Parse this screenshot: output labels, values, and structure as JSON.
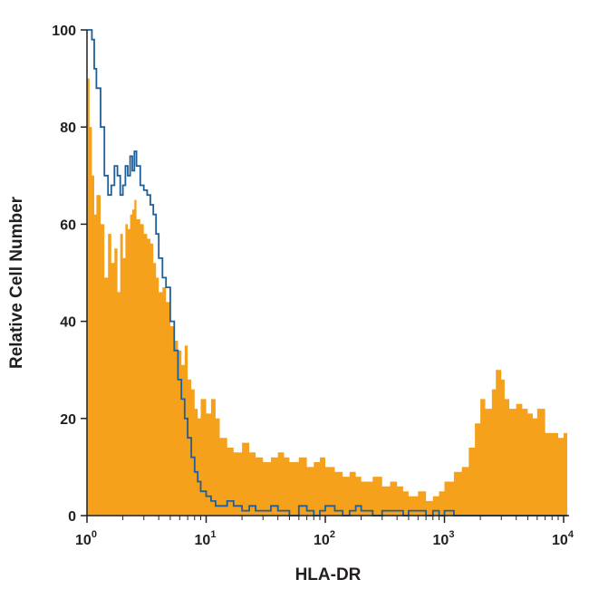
{
  "chart_data": {
    "type": "area",
    "title": "",
    "xlabel": "HLA-DR",
    "ylabel": "Relative Cell Number",
    "x_scale": "log",
    "xlim": [
      1,
      10000
    ],
    "ylim": [
      0,
      100
    ],
    "grid": false,
    "x_ticks": [
      {
        "base": "10",
        "exp": "0",
        "value": 1
      },
      {
        "base": "10",
        "exp": "1",
        "value": 10
      },
      {
        "base": "10",
        "exp": "2",
        "value": 100
      },
      {
        "base": "10",
        "exp": "3",
        "value": 1000
      },
      {
        "base": "10",
        "exp": "4",
        "value": 10000
      }
    ],
    "y_ticks": [
      "0",
      "20",
      "40",
      "60",
      "80",
      "100"
    ],
    "series": [
      {
        "style": "filled",
        "color": "#f5a11c",
        "x": [
          1,
          1.05,
          1.1,
          1.15,
          1.2,
          1.3,
          1.4,
          1.5,
          1.6,
          1.7,
          1.8,
          1.9,
          2.0,
          2.1,
          2.2,
          2.3,
          2.4,
          2.5,
          2.6,
          2.8,
          3.0,
          3.2,
          3.4,
          3.6,
          3.8,
          4.0,
          4.3,
          4.6,
          5.0,
          5.4,
          5.8,
          6.2,
          6.6,
          7.0,
          7.5,
          8.0,
          8.5,
          9.0,
          10,
          11,
          12,
          13,
          15,
          17,
          20,
          23,
          26,
          30,
          35,
          40,
          45,
          50,
          60,
          70,
          80,
          90,
          100,
          120,
          140,
          160,
          180,
          200,
          250,
          300,
          350,
          400,
          450,
          500,
          600,
          700,
          800,
          900,
          1000,
          1200,
          1400,
          1600,
          1800,
          2000,
          2200,
          2500,
          2700,
          3000,
          3200,
          3500,
          4000,
          4500,
          5000,
          5500,
          6000,
          7000,
          8000,
          9000,
          10000
        ],
        "y": [
          90,
          80,
          70,
          62,
          66,
          60,
          49,
          58,
          52,
          55,
          46,
          58,
          53,
          60,
          59,
          62,
          63,
          65,
          61,
          60,
          58,
          57,
          56,
          52,
          49,
          46,
          47,
          44,
          39,
          36,
          34,
          31,
          35,
          28,
          26,
          22,
          20,
          24,
          21,
          24,
          20,
          16,
          14,
          13,
          15,
          13,
          12,
          11,
          12,
          13,
          12,
          11,
          12,
          10,
          11,
          12,
          10,
          9,
          8,
          9,
          8,
          7,
          8,
          6,
          7,
          6,
          5,
          4,
          5,
          3,
          4,
          5,
          7,
          9,
          10,
          14,
          19,
          24,
          22,
          26,
          30,
          28,
          24,
          22,
          23,
          22,
          21,
          20,
          22,
          17,
          17,
          16,
          17
        ]
      },
      {
        "style": "line",
        "color": "#1e5f9a",
        "x": [
          1,
          1.05,
          1.1,
          1.15,
          1.2,
          1.3,
          1.4,
          1.5,
          1.6,
          1.7,
          1.8,
          1.9,
          2.0,
          2.1,
          2.2,
          2.3,
          2.4,
          2.5,
          2.6,
          2.8,
          3.0,
          3.2,
          3.4,
          3.6,
          3.8,
          4.0,
          4.3,
          4.6,
          5.0,
          5.4,
          5.8,
          6.2,
          6.6,
          7.0,
          7.5,
          8.0,
          8.5,
          9.0,
          10,
          11,
          12,
          13,
          15,
          17,
          20,
          23,
          26,
          30,
          35,
          40,
          45,
          50,
          60,
          70,
          80,
          90,
          100,
          120,
          140,
          160,
          180,
          200,
          250,
          300,
          350,
          400,
          450,
          500,
          600,
          700,
          800,
          900,
          1000,
          1200,
          1400,
          1600,
          1800,
          2000,
          2200,
          2500,
          2700,
          3000,
          3200,
          3500,
          4000,
          4500,
          5000,
          5500,
          6000,
          7000,
          8000,
          9000,
          10000
        ],
        "y": [
          100,
          100,
          98,
          92,
          88,
          80,
          70,
          66,
          68,
          72,
          70,
          66,
          68,
          72,
          70,
          74,
          71,
          75,
          72,
          68,
          67,
          66,
          64,
          62,
          58,
          53,
          49,
          47,
          40,
          34,
          28,
          24,
          20,
          16,
          12,
          9,
          7,
          5,
          4,
          3,
          2,
          2,
          3,
          2,
          1,
          2,
          1,
          1,
          2,
          1,
          1,
          0,
          2,
          1,
          0,
          1,
          2,
          1,
          0,
          1,
          2,
          1,
          0,
          1,
          1,
          1,
          0,
          1,
          1,
          0,
          1,
          0,
          1,
          0,
          0,
          0,
          0,
          0,
          0,
          0,
          0,
          0,
          0,
          0,
          0,
          0,
          0,
          0,
          0,
          0,
          0,
          0,
          0
        ]
      }
    ]
  }
}
